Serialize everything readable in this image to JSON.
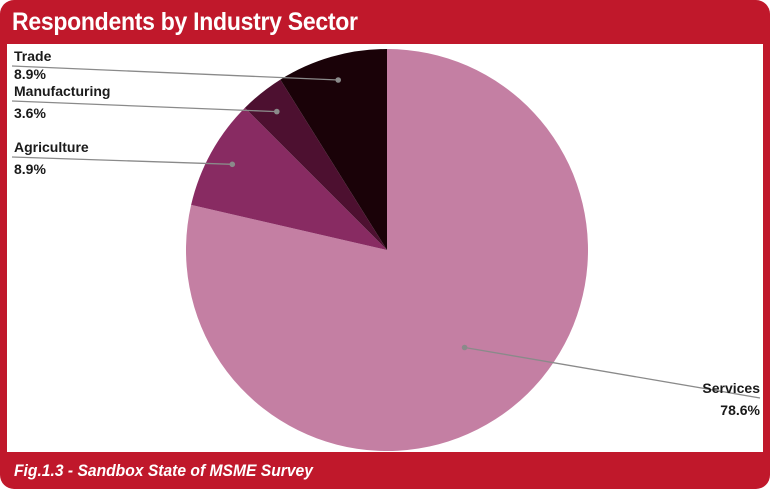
{
  "title": "Respondents by Industry Sector",
  "caption": "Fig.1.3 - Sandbox State of MSME Survey",
  "colors": {
    "frame": "#c0182b",
    "panel": "#ffffff",
    "leader": "#8a8a8a"
  },
  "chart_data": {
    "type": "pie",
    "title": "Respondents by Industry Sector",
    "start": "12 o'clock",
    "direction": "clockwise",
    "legend": "none",
    "slices": [
      {
        "label": "Services",
        "value": 78.6,
        "display": "78.6%",
        "color": "#c47fa3"
      },
      {
        "label": "Agriculture",
        "value": 8.9,
        "display": "8.9%",
        "color": "#882b62"
      },
      {
        "label": "Manufacturing",
        "value": 3.6,
        "display": "3.6%",
        "color": "#4d1030"
      },
      {
        "label": "Trade",
        "value": 8.9,
        "display": "8.9%",
        "color": "#1a0208"
      }
    ]
  }
}
